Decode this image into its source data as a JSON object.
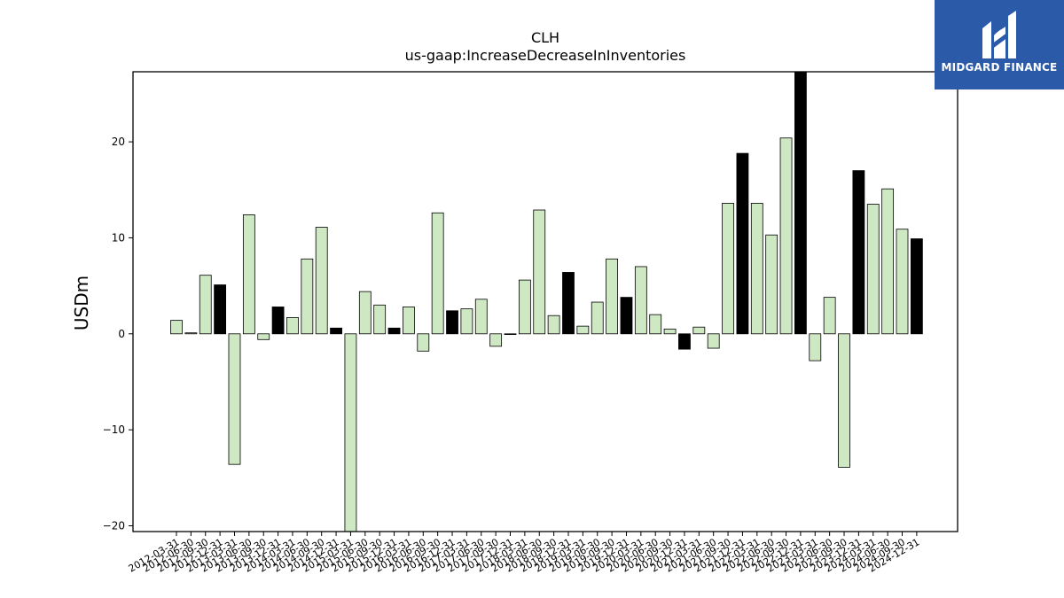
{
  "logo": {
    "text": "MIDGARD FINANCE",
    "icon": "midgard-logo-icon",
    "bg_color": "#2b5aa8"
  },
  "chart_data": {
    "type": "bar",
    "title": "CLH",
    "subtitle": "us-gaap:IncreaseDecreaseInInventories",
    "xlabel": "",
    "ylabel": "USDm",
    "ylim": [
      -20.6,
      27.3
    ],
    "yticks": [
      -20,
      -10,
      0,
      10,
      20
    ],
    "grid": false,
    "colors": {
      "q1_q3": "#cfe8c4",
      "q4": "#000000",
      "edge": "#000000"
    },
    "categories": [
      "2012-03-31",
      "2012-06-30",
      "2012-09-30",
      "2012-12-31",
      "2013-03-31",
      "2013-06-30",
      "2013-09-30",
      "2013-12-31",
      "2014-03-31",
      "2014-06-30",
      "2014-09-30",
      "2014-12-31",
      "2015-03-31",
      "2015-06-30",
      "2015-09-30",
      "2015-12-31",
      "2016-03-31",
      "2016-06-30",
      "2016-09-30",
      "2016-12-31",
      "2017-03-31",
      "2017-06-30",
      "2017-09-30",
      "2017-12-31",
      "2018-03-31",
      "2018-06-30",
      "2018-09-30",
      "2018-12-31",
      "2019-03-31",
      "2019-06-30",
      "2019-09-30",
      "2019-12-31",
      "2020-03-31",
      "2020-06-30",
      "2020-09-30",
      "2020-12-31",
      "2021-03-31",
      "2021-06-30",
      "2021-09-30",
      "2021-12-31",
      "2022-03-31",
      "2022-06-30",
      "2022-09-30",
      "2022-12-31",
      "2023-03-31",
      "2023-06-30",
      "2023-09-30",
      "2023-12-31",
      "2024-03-31",
      "2024-06-30",
      "2024-09-30",
      "2024-12-31"
    ],
    "values": [
      1.4,
      0.1,
      6.1,
      5.1,
      -13.6,
      12.4,
      -0.6,
      2.8,
      1.7,
      7.8,
      11.1,
      0.6,
      -21.0,
      4.4,
      3.0,
      0.6,
      2.8,
      -1.8,
      12.6,
      2.4,
      2.6,
      3.6,
      -1.3,
      0.0,
      5.6,
      12.9,
      1.9,
      6.4,
      0.8,
      3.3,
      7.8,
      3.8,
      7.0,
      2.0,
      0.5,
      -1.6,
      0.7,
      -1.5,
      13.6,
      18.8,
      13.6,
      10.3,
      20.4,
      27.5,
      -2.8,
      3.8,
      -13.9,
      17.0,
      13.5,
      15.1,
      10.9,
      9.9
    ],
    "series": [
      {
        "values_ref": "values"
      }
    ]
  }
}
